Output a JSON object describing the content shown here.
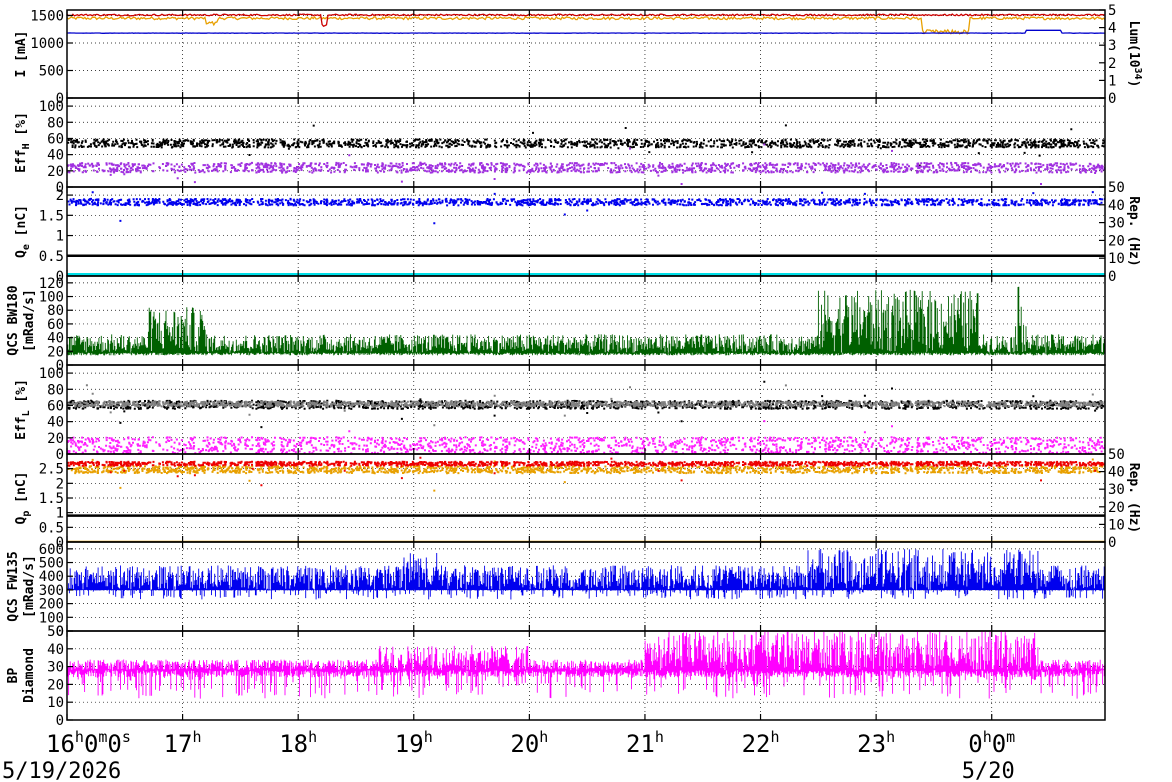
{
  "chart_data": {
    "type": "line",
    "time_axis": {
      "tick_labels": [
        {
          "main": "16",
          "sup": "h",
          "rest": "0",
          "sup2": "m",
          "rest2": "0",
          "sup3": "s"
        },
        {
          "main": "17",
          "sup": "h"
        },
        {
          "main": "18",
          "sup": "h"
        },
        {
          "main": "19",
          "sup": "h"
        },
        {
          "main": "20",
          "sup": "h"
        },
        {
          "main": "21",
          "sup": "h"
        },
        {
          "main": "22",
          "sup": "h"
        },
        {
          "main": "23",
          "sup": "h"
        },
        {
          "main": "0",
          "sup": "h",
          "rest": "0",
          "sup2": "m"
        }
      ],
      "tick_hours": [
        16,
        17,
        18,
        19,
        20,
        21,
        22,
        23,
        24
      ],
      "range_hours": [
        16,
        24.98
      ],
      "dates": [
        {
          "text": "5/19/2026",
          "at_hour": 16
        },
        {
          "text": "5/20",
          "at_hour": 24
        }
      ]
    },
    "panels": [
      {
        "id": "current",
        "left_title": "I [mA]",
        "ylim": [
          0,
          1600
        ],
        "yticks": [
          0,
          500,
          1000,
          1500
        ],
        "right": {
          "title": "Lum(10",
          "title_sup": "34",
          "title_end": ")",
          "ylim": [
            0,
            5
          ],
          "yticks": [
            0,
            1,
            2,
            3,
            4,
            5
          ]
        },
        "grid": true,
        "series": [
          {
            "color": "#e8a000",
            "kind": "line",
            "level": 1450,
            "noise": 25,
            "start": 16,
            "end": 24.98,
            "dips": [
              [
                23.4,
                23.8,
                1200
              ],
              [
                17.2,
                17.3,
                1350
              ]
            ]
          },
          {
            "color": "#cc0000",
            "kind": "line",
            "level": 1510,
            "noise": 15,
            "start": 16,
            "end": 24.98,
            "dips": [
              [
                18.2,
                18.25,
                1300
              ]
            ]
          },
          {
            "color": "#0000cc",
            "kind": "line",
            "level": 1180,
            "noise": 3,
            "start": 16,
            "end": 24.98,
            "steps": [
              [
                24.3,
                24.6,
                1230
              ]
            ],
            "axis": "left"
          }
        ]
      },
      {
        "id": "effh",
        "left_title": "Eff",
        "left_title_sub": "H",
        "left_title_end": " [%]",
        "ylim": [
          0,
          110
        ],
        "yticks": [
          0,
          20,
          40,
          60,
          80,
          100
        ],
        "grid": true,
        "series": [
          {
            "color": "#000000",
            "kind": "dots",
            "level": 55,
            "noise": 5,
            "start": 16,
            "end": 24.98
          },
          {
            "color": "#a030e0",
            "kind": "dots",
            "level": 25,
            "noise": 6,
            "start": 16,
            "end": 24.98
          }
        ]
      },
      {
        "id": "qe",
        "left_title": "Q",
        "left_title_sub": "e",
        "left_title_end": " [nC]",
        "ylim": [
          0,
          2.2
        ],
        "yticks": [
          0.5,
          1,
          1.5,
          2
        ],
        "extra_ytick_labels": [
          "0"
        ],
        "right": {
          "title": "Rep. (Hz)",
          "ylim": [
            0,
            50
          ],
          "yticks": [
            0,
            10,
            20,
            30,
            40,
            50
          ]
        },
        "grid": true,
        "series": [
          {
            "color": "#0000ee",
            "kind": "dots",
            "level": 1.85,
            "noise": 0.08,
            "start": 16,
            "end": 24.98
          },
          {
            "color": "#000000",
            "kind": "hline",
            "level": 0.5
          },
          {
            "color": "#00e0e8",
            "kind": "hline",
            "level": 0,
            "axis": "right"
          }
        ]
      },
      {
        "id": "bw180",
        "left_title": "QCS BW180",
        "left_title2": "[mRad/s]",
        "ylim": [
          0,
          130
        ],
        "yticks": [
          0,
          20,
          40,
          60,
          80,
          100,
          120
        ],
        "grid": true,
        "series": [
          {
            "color": "#006000",
            "kind": "spikes",
            "base": 18,
            "top": 45,
            "start": 16,
            "end": 24.98,
            "peaks": [
              [
                16.7,
                17.2,
                85
              ],
              [
                22.5,
                23.9,
                110
              ],
              [
                24.2,
                24.3,
                115
              ]
            ]
          }
        ]
      },
      {
        "id": "effl",
        "left_title": "Eff",
        "left_title_sub": "L",
        "left_title_end": " [%]",
        "ylim": [
          0,
          110
        ],
        "yticks": [
          0,
          20,
          40,
          60,
          80,
          100
        ],
        "grid": true,
        "series": [
          {
            "color": "#000000",
            "kind": "dots",
            "level": 62,
            "noise": 5,
            "start": 16,
            "end": 24.98
          },
          {
            "color": "#808080",
            "kind": "dots",
            "level": 63,
            "noise": 3,
            "start": 16,
            "end": 24.98
          },
          {
            "color": "#ff20ff",
            "kind": "dots",
            "level": 12,
            "noise": 10,
            "start": 16,
            "end": 24.98
          }
        ]
      },
      {
        "id": "qp",
        "left_title": "Q",
        "left_title_sub": "p",
        "left_title_end": " [nC]",
        "ylim": [
          0,
          3
        ],
        "yticks": [
          0.5,
          1,
          1.5,
          2,
          2.5
        ],
        "extra_ytick_labels": [
          "0"
        ],
        "right": {
          "title": "Rep. (Hz)",
          "ylim": [
            0,
            50
          ],
          "yticks": [
            0,
            10,
            20,
            30,
            40,
            50
          ]
        },
        "grid": true,
        "series": [
          {
            "color": "#e8a000",
            "kind": "dots",
            "level": 2.5,
            "noise": 0.12,
            "start": 16,
            "end": 24.98
          },
          {
            "color": "#ee0000",
            "kind": "dots",
            "level": 2.7,
            "noise": 0.07,
            "start": 16,
            "end": 24.98
          },
          {
            "color": "#000000",
            "kind": "hline",
            "level": 0.9
          },
          {
            "color": "#e8a000",
            "kind": "hline",
            "level": 0,
            "axis": "right"
          }
        ]
      },
      {
        "id": "fw135",
        "left_title": "QCS FW135",
        "left_title2": "[mRad/s]",
        "ylim": [
          0,
          650
        ],
        "yticks": [
          0,
          100,
          200,
          300,
          400,
          500,
          600
        ],
        "grid": true,
        "series": [
          {
            "color": "#0000ee",
            "kind": "spikes",
            "base": 300,
            "top": 480,
            "low": 230,
            "start": 16,
            "end": 24.98,
            "peaks": [
              [
                18.9,
                19.2,
                580
              ],
              [
                22.4,
                24.4,
                600
              ]
            ]
          }
        ]
      },
      {
        "id": "diamond",
        "left_title": "BP",
        "left_title2": "Diamond",
        "ylim": [
          0,
          50
        ],
        "yticks": [
          0,
          10,
          20,
          30,
          40,
          50
        ],
        "grid": true,
        "series": [
          {
            "color": "#ff00ff",
            "kind": "spikes",
            "base": 28,
            "top": 34,
            "low": 12,
            "start": 16,
            "end": 24.98,
            "peaks": [
              [
                18.7,
                20.0,
                42
              ],
              [
                21.0,
                24.4,
                50
              ]
            ]
          }
        ]
      }
    ]
  }
}
